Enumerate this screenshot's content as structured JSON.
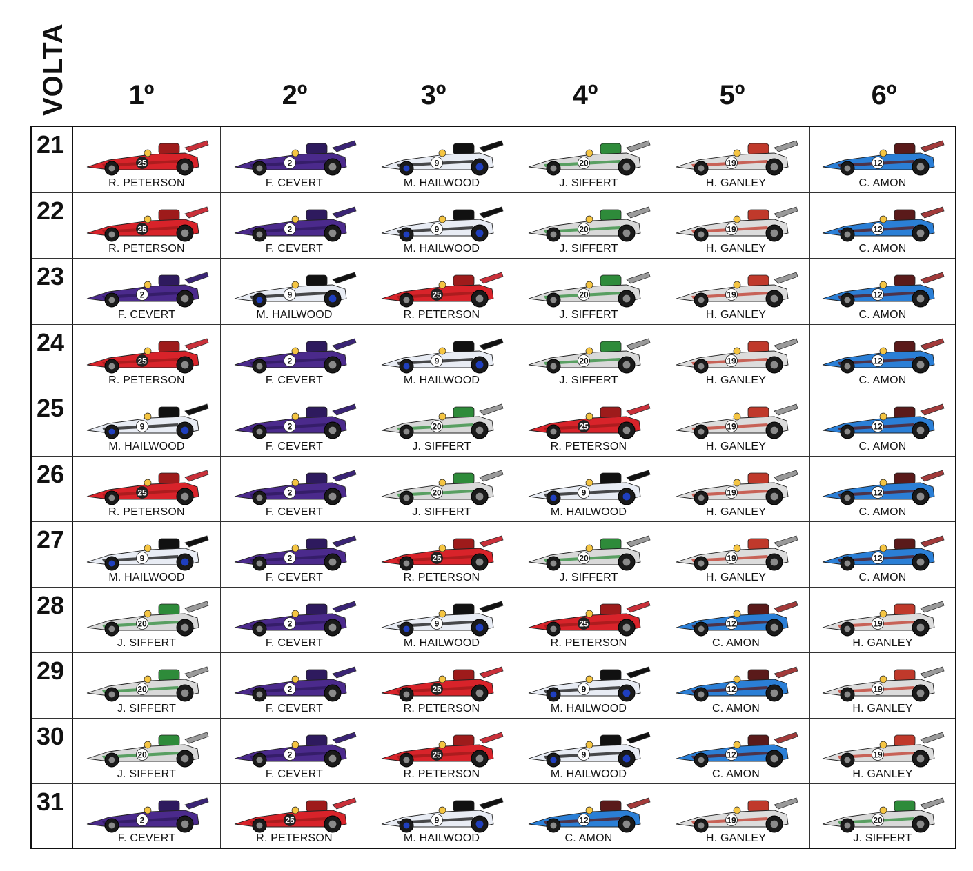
{
  "axis_label": "VOLTA",
  "positions": [
    "1º",
    "2º",
    "3º",
    "4º",
    "5º",
    "6º"
  ],
  "teams": {
    "PETERSON": {
      "driver": "R. PETERSON",
      "number": "25",
      "body": "#d8232a",
      "accent": "#9e1b1b",
      "wing": "#c9303a",
      "numtext": "#ffffff",
      "numbg": "#222222"
    },
    "CEVERT": {
      "driver": "F. CEVERT",
      "number": "2",
      "body": "#4b2a8c",
      "accent": "#2e1a5e",
      "wing": "#3a2475",
      "numtext": "#111111",
      "numbg": "#ffffff"
    },
    "HAILWOOD": {
      "driver": "M. HAILWOOD",
      "number": "9",
      "body": "#e8ecf4",
      "accent": "#111111",
      "wing": "#111111",
      "numtext": "#111111",
      "numbg": "#ffffff"
    },
    "SIFFERT": {
      "driver": "J. SIFFERT",
      "number": "20",
      "body": "#d9d9d9",
      "accent": "#2e8b3a",
      "wing": "#9a9a9a",
      "numtext": "#111111",
      "numbg": "#ffffff"
    },
    "GANLEY": {
      "driver": "H. GANLEY",
      "number": "19",
      "body": "#dcdcdc",
      "accent": "#c0392b",
      "wing": "#9a9a9a",
      "numtext": "#111111",
      "numbg": "#ffffff"
    },
    "AMON": {
      "driver": "C. AMON",
      "number": "12",
      "body": "#2b7fd6",
      "accent": "#5a1a1a",
      "wing": "#a23a3a",
      "numtext": "#111111",
      "numbg": "#ffffff"
    }
  },
  "laps": [
    {
      "lap": "21",
      "order": [
        "PETERSON",
        "CEVERT",
        "HAILWOOD",
        "SIFFERT",
        "GANLEY",
        "AMON"
      ]
    },
    {
      "lap": "22",
      "order": [
        "PETERSON",
        "CEVERT",
        "HAILWOOD",
        "SIFFERT",
        "GANLEY",
        "AMON"
      ]
    },
    {
      "lap": "23",
      "order": [
        "CEVERT",
        "HAILWOOD",
        "PETERSON",
        "SIFFERT",
        "GANLEY",
        "AMON"
      ]
    },
    {
      "lap": "24",
      "order": [
        "PETERSON",
        "CEVERT",
        "HAILWOOD",
        "SIFFERT",
        "GANLEY",
        "AMON"
      ]
    },
    {
      "lap": "25",
      "order": [
        "HAILWOOD",
        "CEVERT",
        "SIFFERT",
        "PETERSON",
        "GANLEY",
        "AMON"
      ]
    },
    {
      "lap": "26",
      "order": [
        "PETERSON",
        "CEVERT",
        "SIFFERT",
        "HAILWOOD",
        "GANLEY",
        "AMON"
      ]
    },
    {
      "lap": "27",
      "order": [
        "HAILWOOD",
        "CEVERT",
        "PETERSON",
        "SIFFERT",
        "GANLEY",
        "AMON"
      ]
    },
    {
      "lap": "28",
      "order": [
        "SIFFERT",
        "CEVERT",
        "HAILWOOD",
        "PETERSON",
        "AMON",
        "GANLEY"
      ]
    },
    {
      "lap": "29",
      "order": [
        "SIFFERT",
        "CEVERT",
        "PETERSON",
        "HAILWOOD",
        "AMON",
        "GANLEY"
      ]
    },
    {
      "lap": "30",
      "order": [
        "SIFFERT",
        "CEVERT",
        "PETERSON",
        "HAILWOOD",
        "AMON",
        "GANLEY"
      ]
    },
    {
      "lap": "31",
      "order": [
        "CEVERT",
        "PETERSON",
        "HAILWOOD",
        "AMON",
        "GANLEY",
        "SIFFERT"
      ]
    }
  ]
}
